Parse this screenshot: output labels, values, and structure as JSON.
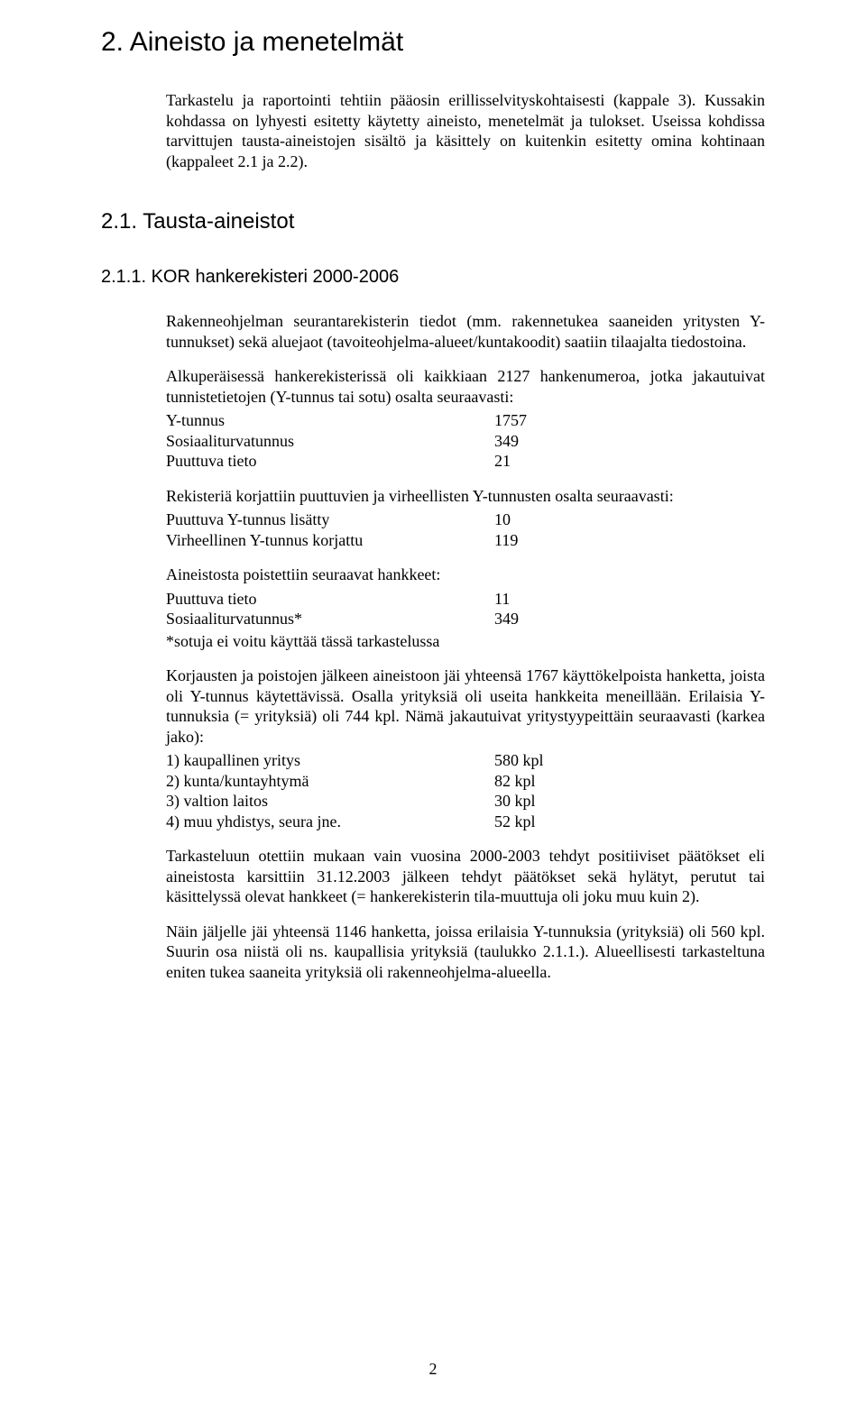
{
  "headings": {
    "main": "2. Aineisto ja menetelmät",
    "sub": "2.1. Tausta-aineistot",
    "subsub": "2.1.1. KOR hankerekisteri 2000-2006"
  },
  "intro_paragraph": "Tarkastelu ja raportointi tehtiin pääosin erillisselvityskohtaisesti (kappale 3). Kussakin kohdassa on lyhyesti esitetty käytetty aineisto, menetelmät ja tulokset. Useissa kohdissa tarvittujen tausta-aineistojen sisältö ja käsittely on kuitenkin esitetty omina kohtinaan (kappaleet 2.1 ja 2.2).",
  "body": {
    "p1": "Rakenneohjelman seurantarekisterin tiedot (mm. rakennetukea saaneiden yritysten Y-tunnukset) sekä aluejaot (tavoiteohjelma-alueet/kuntakoodit) saatiin tilaajalta tiedostoina.",
    "p2": "Alkuperäisessä hankerekisterissä oli kaikkiaan 2127 hankenumeroa, jotka jakautuivat tunnistetietojen (Y-tunnus tai sotu) osalta seuraavasti:",
    "p3": "Rekisteriä korjattiin puuttuvien ja virheellisten Y-tunnusten osalta seuraavasti:",
    "p4": "Aineistosta poistettiin seuraavat hankkeet:",
    "note": "*sotuja ei voitu käyttää tässä tarkastelussa",
    "p5": "Korjausten ja poistojen jälkeen aineistoon jäi yhteensä 1767 käyttökelpoista hanketta, joista oli Y-tunnus käytettävissä. Osalla yrityksiä oli useita hankkeita meneillään. Erilaisia Y-tunnuksia (= yrityksiä) oli 744 kpl. Nämä jakautuivat yritystyypeittäin seuraavasti (karkea jako):",
    "p6": "Tarkasteluun otettiin mukaan vain vuosina 2000-2003 tehdyt positiiviset päätökset eli aineistosta karsittiin 31.12.2003 jälkeen tehdyt päätökset sekä hylätyt, perutut tai käsittelyssä olevat hankkeet (= hankerekisterin tila-muuttuja oli joku muu kuin 2).",
    "p7": "Näin jäljelle jäi yhteensä 1146 hanketta, joissa erilaisia Y-tunnuksia (yrityksiä) oli 560 kpl. Suurin osa niistä oli ns. kaupallisia yrityksiä (taulukko 2.1.1.). Alueellisesti tarkasteltuna eniten tukea saaneita yrityksiä oli rakenneohjelma-alueella."
  },
  "tables": {
    "tunnistetiedot": [
      {
        "label": "Y-tunnus",
        "value": "1757"
      },
      {
        "label": "Sosiaaliturvatunnus",
        "value": "349"
      },
      {
        "label": "Puuttuva tieto",
        "value": "21"
      }
    ],
    "korjaukset": [
      {
        "label": "Puuttuva Y-tunnus lisätty",
        "value": "10"
      },
      {
        "label": "Virheellinen Y-tunnus korjattu",
        "value": "119"
      }
    ],
    "poistot": [
      {
        "label": "Puuttuva tieto",
        "value": "11"
      },
      {
        "label": "Sosiaaliturvatunnus*",
        "value": "349"
      }
    ],
    "yritystyypit": [
      {
        "label": "1) kaupallinen yritys",
        "value": "580 kpl"
      },
      {
        "label": "2) kunta/kuntayhtymä",
        "value": "82 kpl"
      },
      {
        "label": "3) valtion laitos",
        "value": "30 kpl"
      },
      {
        "label": "4) muu yhdistys, seura jne.",
        "value": "52 kpl"
      }
    ]
  },
  "page_number": "2",
  "colors": {
    "text": "#000000",
    "background": "#ffffff"
  },
  "typography": {
    "heading_font": "Arial",
    "body_font": "Times New Roman",
    "body_size_pt": 13,
    "h1_size_pt": 22,
    "h2_size_pt": 18,
    "h3_size_pt": 15
  }
}
